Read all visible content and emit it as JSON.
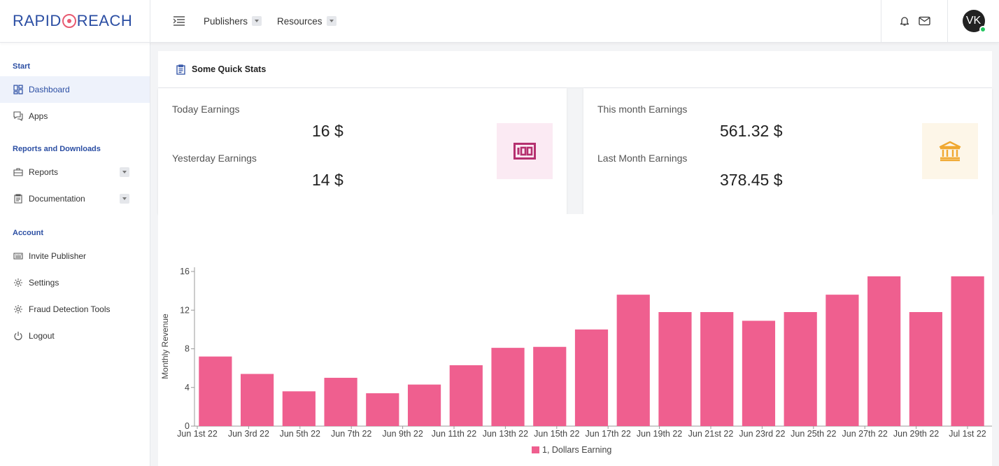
{
  "brand": {
    "left": "RAPID",
    "right": "REACH"
  },
  "nav": {
    "publishers": "Publishers",
    "resources": "Resources"
  },
  "user": {
    "initials": "VK"
  },
  "sidebar": {
    "start_title": "Start",
    "reports_title": "Reports and Downloads",
    "account_title": "Account",
    "items": {
      "dashboard": "Dashboard",
      "apps": "Apps",
      "reports": "Reports",
      "documentation": "Documentation",
      "invite": "Invite Publisher",
      "settings": "Settings",
      "fraud": "Fraud Detection Tools",
      "logout": "Logout"
    }
  },
  "quick_stats": {
    "title": "Some Quick Stats",
    "today_label": "Today Earnings",
    "today_value": "16 $",
    "yesterday_label": "Yesterday Earnings",
    "yesterday_value": "14 $",
    "month_label": "This month Earnings",
    "month_value": "561.32 $",
    "last_month_label": "Last Month Earnings",
    "last_month_value": "378.45 $"
  },
  "colors": {
    "bar": "#ef5f8f",
    "accent": "#2b4ea3",
    "cash_icon": "#b5306f",
    "bank_icon": "#f0a830"
  },
  "chart_data": {
    "type": "bar",
    "ylabel": "Monthly Revenue",
    "ylim": [
      0,
      16
    ],
    "yticks": [
      0,
      4,
      8,
      12,
      16
    ],
    "tick_labels": [
      "Jun 1st 22",
      "Jun 3rd 22",
      "Jun 5th 22",
      "Jun 7th 22",
      "Jun 9th 22",
      "Jun 11th 22",
      "Jun 13th 22",
      "Jun 15th 22",
      "Jun 17th 22",
      "Jun 19th 22",
      "Jun 21st 22",
      "Jun 23rd 22",
      "Jun 25th 22",
      "Jun 27th 22",
      "Jun 29th 22",
      "Jul 1st 22"
    ],
    "series": [
      {
        "name": "1, Dollars Earning",
        "values": [
          7.2,
          5.4,
          3.6,
          5.0,
          3.4,
          4.3,
          6.3,
          8.1,
          8.2,
          10.0,
          13.6,
          11.8,
          11.8,
          10.9,
          11.8,
          13.6,
          15.5,
          11.8,
          15.5
        ]
      }
    ]
  }
}
